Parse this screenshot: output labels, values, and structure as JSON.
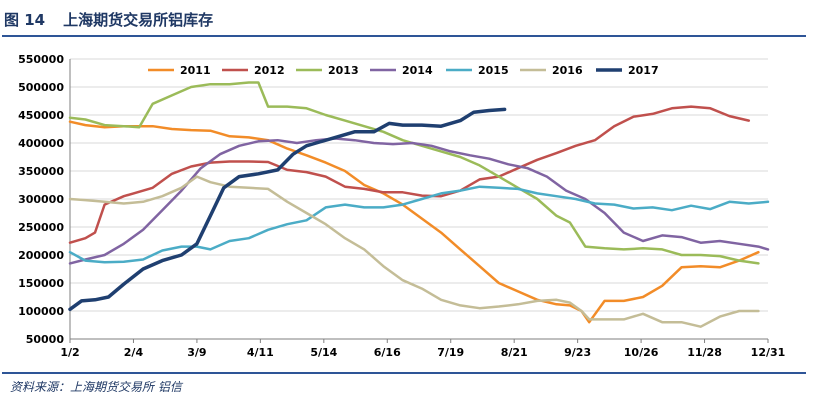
{
  "header": {
    "figure_number": "图 14",
    "title": "上海期货交易所铝库存"
  },
  "footer": {
    "source": "资料来源：上海期货交易所   铝信"
  },
  "chart_data": {
    "type": "line",
    "title": "上海期货交易所铝库存",
    "xlabel": "",
    "ylabel": "",
    "x_tick_labels": [
      "1/2",
      "2/4",
      "3/9",
      "4/11",
      "5/14",
      "6/16",
      "7/19",
      "8/21",
      "9/23",
      "10/26",
      "11/28",
      "12/31"
    ],
    "x_tick_days": [
      2,
      35,
      68,
      101,
      134,
      167,
      200,
      233,
      266,
      299,
      332,
      365
    ],
    "xlim": [
      2,
      365
    ],
    "ylim": [
      50000,
      550000
    ],
    "y_ticks": [
      "50000",
      "100000",
      "150000",
      "200000",
      "250000",
      "300000",
      "350000",
      "400000",
      "450000",
      "500000",
      "550000"
    ],
    "grid": "horizontal",
    "legend_position": "top",
    "series": [
      {
        "name": "2011",
        "color": "#f28c28",
        "x": [
          2,
          10,
          20,
          30,
          45,
          55,
          65,
          75,
          85,
          95,
          105,
          115,
          125,
          135,
          145,
          155,
          165,
          175,
          185,
          195,
          205,
          215,
          225,
          235,
          245,
          255,
          262,
          268,
          272,
          280,
          290,
          300,
          310,
          320,
          330,
          340,
          350,
          360
        ],
        "y": [
          438000,
          432000,
          428000,
          430000,
          430000,
          425000,
          423000,
          422000,
          412000,
          410000,
          405000,
          390000,
          378000,
          365000,
          350000,
          325000,
          310000,
          290000,
          265000,
          240000,
          210000,
          180000,
          150000,
          135000,
          120000,
          112000,
          110000,
          100000,
          80000,
          118000,
          118000,
          125000,
          145000,
          178000,
          180000,
          178000,
          190000,
          205000
        ]
      },
      {
        "name": "2012",
        "color": "#c0504d",
        "x": [
          2,
          10,
          15,
          20,
          30,
          35,
          45,
          55,
          65,
          75,
          85,
          95,
          105,
          115,
          125,
          135,
          145,
          155,
          165,
          175,
          185,
          195,
          205,
          215,
          225,
          235,
          245,
          255,
          265,
          275,
          285,
          295,
          305,
          315,
          325,
          335,
          345,
          355
        ],
        "y": [
          222000,
          230000,
          240000,
          290000,
          305000,
          310000,
          320000,
          345000,
          358000,
          365000,
          367000,
          367000,
          366000,
          352000,
          348000,
          340000,
          322000,
          318000,
          312000,
          312000,
          306000,
          305000,
          315000,
          335000,
          340000,
          355000,
          370000,
          382000,
          395000,
          405000,
          430000,
          447000,
          452000,
          462000,
          465000,
          462000,
          448000,
          440000
        ]
      },
      {
        "name": "2013",
        "color": "#9bbb59",
        "x": [
          2,
          10,
          20,
          30,
          38,
          45,
          55,
          65,
          75,
          85,
          95,
          100,
          105,
          115,
          125,
          135,
          145,
          155,
          165,
          175,
          185,
          195,
          205,
          215,
          225,
          235,
          245,
          255,
          262,
          270,
          280,
          290,
          300,
          310,
          320,
          330,
          340,
          350,
          360
        ],
        "y": [
          445000,
          442000,
          432000,
          430000,
          428000,
          470000,
          485000,
          500000,
          505000,
          505000,
          508000,
          508000,
          465000,
          465000,
          462000,
          450000,
          440000,
          430000,
          420000,
          405000,
          395000,
          385000,
          375000,
          360000,
          340000,
          320000,
          300000,
          270000,
          258000,
          215000,
          212000,
          210000,
          212000,
          210000,
          200000,
          200000,
          198000,
          190000,
          185000
        ]
      },
      {
        "name": "2014",
        "color": "#8064a2",
        "x": [
          2,
          10,
          20,
          30,
          40,
          50,
          60,
          70,
          80,
          90,
          100,
          110,
          120,
          130,
          140,
          150,
          160,
          170,
          180,
          190,
          200,
          210,
          220,
          230,
          240,
          250,
          260,
          270,
          280,
          290,
          300,
          310,
          320,
          330,
          340,
          350,
          360,
          365
        ],
        "y": [
          185000,
          192000,
          200000,
          220000,
          245000,
          280000,
          315000,
          355000,
          380000,
          395000,
          403000,
          405000,
          400000,
          405000,
          408000,
          405000,
          400000,
          398000,
          400000,
          395000,
          385000,
          378000,
          372000,
          362000,
          355000,
          340000,
          315000,
          300000,
          275000,
          240000,
          225000,
          235000,
          232000,
          222000,
          225000,
          220000,
          215000,
          210000
        ]
      },
      {
        "name": "2015",
        "color": "#4bacc6",
        "x": [
          2,
          10,
          20,
          30,
          40,
          50,
          60,
          68,
          75,
          85,
          95,
          105,
          115,
          125,
          135,
          145,
          155,
          165,
          175,
          185,
          195,
          205,
          215,
          225,
          235,
          245,
          255,
          265,
          275,
          285,
          295,
          305,
          315,
          325,
          335,
          345,
          355,
          365
        ],
        "y": [
          205000,
          190000,
          187000,
          188000,
          192000,
          208000,
          215000,
          215000,
          210000,
          225000,
          230000,
          245000,
          255000,
          262000,
          285000,
          290000,
          285000,
          285000,
          290000,
          300000,
          310000,
          315000,
          322000,
          320000,
          318000,
          310000,
          305000,
          300000,
          292000,
          290000,
          283000,
          285000,
          280000,
          288000,
          282000,
          295000,
          292000,
          295000
        ]
      },
      {
        "name": "2016",
        "color": "#c4bd97",
        "x": [
          2,
          10,
          20,
          30,
          40,
          50,
          60,
          68,
          75,
          85,
          95,
          105,
          115,
          125,
          135,
          145,
          155,
          165,
          175,
          185,
          195,
          205,
          215,
          225,
          235,
          245,
          255,
          262,
          268,
          272,
          280,
          290,
          300,
          310,
          320,
          330,
          340,
          350,
          360
        ],
        "y": [
          300000,
          298000,
          295000,
          292000,
          295000,
          305000,
          320000,
          340000,
          330000,
          322000,
          320000,
          318000,
          295000,
          275000,
          255000,
          230000,
          210000,
          180000,
          155000,
          140000,
          120000,
          110000,
          105000,
          108000,
          112000,
          118000,
          120000,
          115000,
          100000,
          85000,
          85000,
          85000,
          95000,
          80000,
          80000,
          72000,
          90000,
          100000,
          100000
        ]
      },
      {
        "name": "2017",
        "color": "#1f3f70",
        "x": [
          2,
          8,
          15,
          22,
          30,
          40,
          50,
          60,
          68,
          75,
          82,
          90,
          100,
          110,
          118,
          125,
          130,
          140,
          150,
          160,
          168,
          175,
          185,
          195,
          205,
          212,
          220,
          228
        ],
        "y": [
          103000,
          118000,
          120000,
          125000,
          148000,
          175000,
          190000,
          200000,
          220000,
          270000,
          320000,
          340000,
          345000,
          352000,
          380000,
          395000,
          400000,
          410000,
          420000,
          420000,
          435000,
          432000,
          432000,
          430000,
          440000,
          455000,
          458000,
          460000
        ]
      }
    ]
  }
}
